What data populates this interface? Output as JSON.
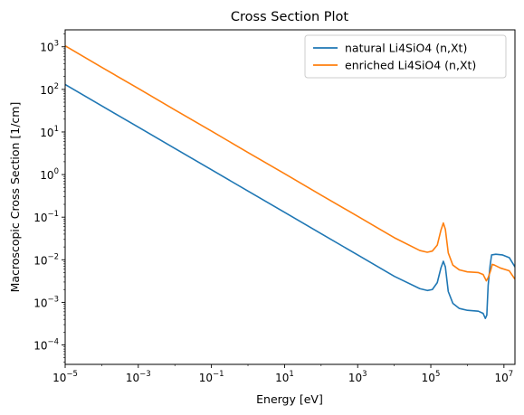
{
  "chart_data": {
    "type": "line",
    "title": "Cross Section Plot",
    "xlabel": "Energy [eV]",
    "ylabel": "Macroscopic Cross Section [1/cm]",
    "xscale": "log",
    "yscale": "log",
    "xlim": [
      1e-05,
      20000000
    ],
    "ylim": [
      3.5e-05,
      2500
    ],
    "x_ticks": [
      {
        "value": 1e-05,
        "base": "10",
        "exp": "−5"
      },
      {
        "value": 0.001,
        "base": "10",
        "exp": "−3"
      },
      {
        "value": 0.1,
        "base": "10",
        "exp": "−1"
      },
      {
        "value": 10,
        "base": "10",
        "exp": "1"
      },
      {
        "value": 1000,
        "base": "10",
        "exp": "3"
      },
      {
        "value": 100000,
        "base": "10",
        "exp": "5"
      },
      {
        "value": 10000000,
        "base": "10",
        "exp": "7"
      }
    ],
    "y_ticks": [
      {
        "value": 0.0001,
        "base": "10",
        "exp": "−4"
      },
      {
        "value": 0.001,
        "base": "10",
        "exp": "−3"
      },
      {
        "value": 0.01,
        "base": "10",
        "exp": "−2"
      },
      {
        "value": 0.1,
        "base": "10",
        "exp": "−1"
      },
      {
        "value": 1,
        "base": "10",
        "exp": "0"
      },
      {
        "value": 10,
        "base": "10",
        "exp": "1"
      },
      {
        "value": 100,
        "base": "10",
        "exp": "2"
      },
      {
        "value": 1000,
        "base": "10",
        "exp": "3"
      }
    ],
    "grid": false,
    "legend": "top-right",
    "series": [
      {
        "name": "natural Li4SiO4 (n,Xt)",
        "color": "#1f77b4",
        "points": [
          [
            1e-05,
            130
          ],
          [
            0.0001,
            41
          ],
          [
            0.001,
            13
          ],
          [
            0.01,
            4.1
          ],
          [
            0.1,
            1.3
          ],
          [
            1,
            0.41
          ],
          [
            10,
            0.13
          ],
          [
            100,
            0.041
          ],
          [
            1000,
            0.013
          ],
          [
            10000,
            0.0041
          ],
          [
            50000,
            0.0021
          ],
          [
            80000,
            0.0019
          ],
          [
            110000,
            0.002
          ],
          [
            150000,
            0.0029
          ],
          [
            190000,
            0.0065
          ],
          [
            220000,
            0.0092
          ],
          [
            250000,
            0.0068
          ],
          [
            300000,
            0.0018
          ],
          [
            400000,
            0.00095
          ],
          [
            600000,
            0.00072
          ],
          [
            1000000,
            0.00065
          ],
          [
            2000000,
            0.00062
          ],
          [
            2700000,
            0.00055
          ],
          [
            3100000,
            0.00042
          ],
          [
            3400000,
            0.0005
          ],
          [
            3700000,
            0.0025
          ],
          [
            4200000,
            0.0075
          ],
          [
            4600000,
            0.013
          ],
          [
            6000000,
            0.0135
          ],
          [
            9000000,
            0.013
          ],
          [
            14000000,
            0.0112
          ],
          [
            20000000,
            0.0068
          ]
        ]
      },
      {
        "name": "enriched Li4SiO4 (n,Xt)",
        "color": "#ff7f0e",
        "points": [
          [
            1e-05,
            1050
          ],
          [
            0.0001,
            330
          ],
          [
            0.001,
            105
          ],
          [
            0.01,
            33
          ],
          [
            0.1,
            10.5
          ],
          [
            1,
            3.3
          ],
          [
            10,
            1.05
          ],
          [
            100,
            0.33
          ],
          [
            1000,
            0.105
          ],
          [
            10000,
            0.033
          ],
          [
            50000,
            0.0165
          ],
          [
            80000,
            0.015
          ],
          [
            110000,
            0.016
          ],
          [
            150000,
            0.022
          ],
          [
            190000,
            0.05
          ],
          [
            220000,
            0.073
          ],
          [
            250000,
            0.052
          ],
          [
            300000,
            0.0145
          ],
          [
            400000,
            0.0075
          ],
          [
            600000,
            0.0058
          ],
          [
            1000000,
            0.0052
          ],
          [
            2000000,
            0.005
          ],
          [
            2700000,
            0.0045
          ],
          [
            3300000,
            0.0032
          ],
          [
            3700000,
            0.0038
          ],
          [
            4300000,
            0.0055
          ],
          [
            4800000,
            0.0078
          ],
          [
            5500000,
            0.0075
          ],
          [
            8000000,
            0.0064
          ],
          [
            14000000,
            0.0055
          ],
          [
            20000000,
            0.0035
          ]
        ]
      }
    ]
  }
}
